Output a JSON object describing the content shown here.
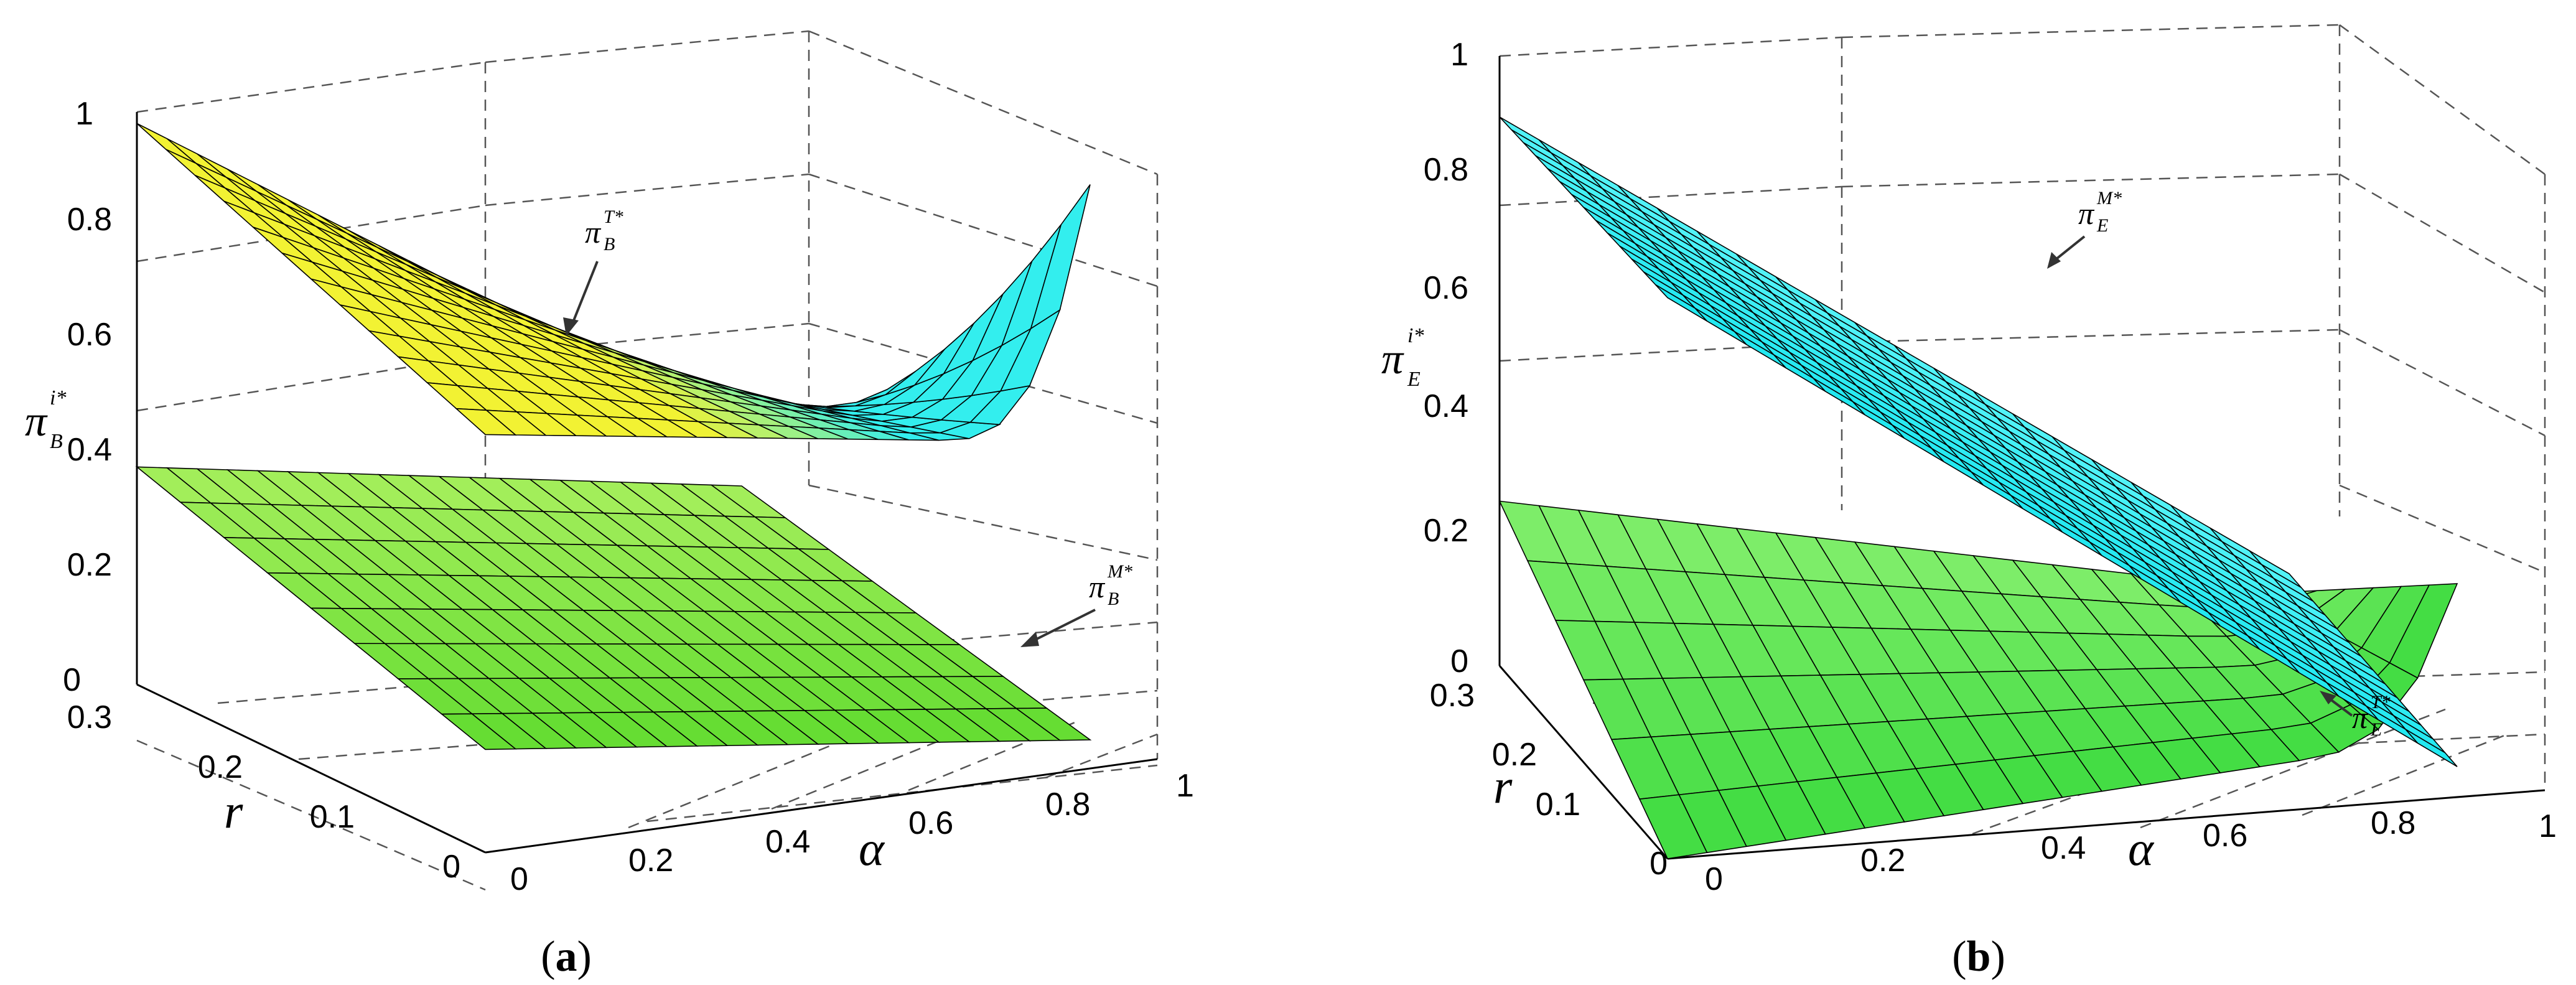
{
  "chart_data": [
    {
      "type": "surface",
      "panel": "a",
      "caption": {
        "open": "(",
        "letter": "a",
        "close": ")"
      },
      "axes": {
        "x": {
          "label": "α",
          "range": [
            0,
            1
          ],
          "ticks": [
            "0",
            "0.2",
            "0.4",
            "0.6",
            "0.8",
            "1"
          ]
        },
        "y": {
          "label": "r",
          "range": [
            0,
            0.3
          ],
          "ticks": [
            "0",
            "0.1",
            "0.2",
            "0.3"
          ]
        },
        "z": {
          "label_main": "π",
          "label_sup": "i*",
          "label_sub": "B",
          "range": [
            0,
            1
          ],
          "ticks": [
            "0",
            "0.2",
            "0.4",
            "0.6",
            "0.8",
            "1"
          ]
        }
      },
      "grid": true,
      "series": [
        {
          "name_main": "π",
          "name_sup": "T*",
          "name_sub": "B",
          "color": "#f0f020",
          "color_alt": "#20f0f0",
          "x_range": [
            0,
            0.9
          ],
          "y_range": [
            0,
            0.3
          ],
          "z_corners": {
            "x0_y0.3": 0.98,
            "x0_y0": 0.73,
            "x0.9_y0.3": 0.3,
            "x0.9_y0": 0.57
          },
          "description": "descends with α, rises sharply near α=0.9 at r=0"
        },
        {
          "name_main": "π",
          "name_sup": "M*",
          "name_sub": "B",
          "color": "#88ee44",
          "x_range": [
            0,
            0.9
          ],
          "y_range": [
            0,
            0.3
          ],
          "z_corners": {
            "x0_y0.3": 0.38,
            "x0_y0": 0.18,
            "x0.9_y0.3": 0.2,
            "x0.9_y0": 0.05
          }
        }
      ]
    },
    {
      "type": "surface",
      "panel": "b",
      "caption": {
        "open": "(",
        "letter": "b",
        "close": ")"
      },
      "axes": {
        "x": {
          "label": "α",
          "range": [
            0,
            1
          ],
          "ticks": [
            "0",
            "0.2",
            "0.4",
            "0.6",
            "0.8",
            "1"
          ]
        },
        "y": {
          "label": "r",
          "range": [
            0,
            0.3
          ],
          "ticks": [
            "0",
            "0.1",
            "0.2",
            "0.3"
          ]
        },
        "z": {
          "label_main": "π",
          "label_sup": "i*",
          "label_sub": "E",
          "range": [
            0,
            1
          ],
          "ticks": [
            "0",
            "0.2",
            "0.4",
            "0.6",
            "0.8",
            "1"
          ]
        }
      },
      "grid": true,
      "series": [
        {
          "name_main": "π",
          "name_sup": "M*",
          "name_sub": "E",
          "color": "#20f0f0",
          "x_range": [
            0,
            0.9
          ],
          "y_range": [
            0,
            0.3
          ],
          "z_corners": {
            "x0_y0.3": 0.9,
            "x0_y0": 0.92,
            "x0.9_y0.3": 0.05,
            "x0.9_y0": 0.05
          }
        },
        {
          "name_main": "π",
          "name_sup": "T*",
          "name_sub": "E",
          "color": "#55ee55",
          "x_range": [
            0,
            0.9
          ],
          "y_range": [
            0,
            0.3
          ],
          "z_corners": {
            "x0_y0.3": 0.27,
            "x0_y0": 0.0,
            "x0.9_y0.3": 0.02,
            "x0.9_y0": 0.1
          },
          "description": "near zero, rises near α=0.9"
        }
      ]
    }
  ]
}
